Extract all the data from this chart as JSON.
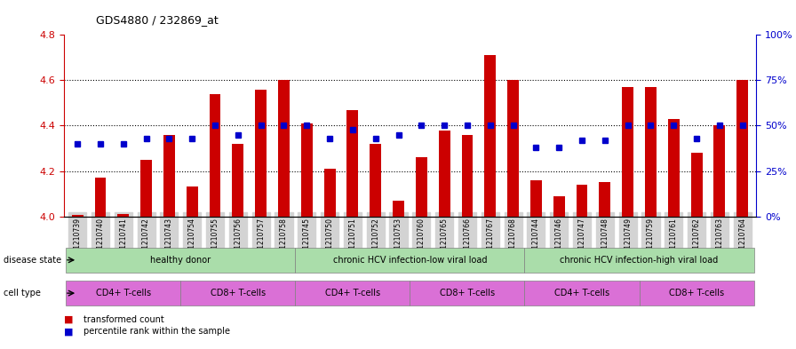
{
  "title": "GDS4880 / 232869_at",
  "samples": [
    "GSM1210739",
    "GSM1210740",
    "GSM1210741",
    "GSM1210742",
    "GSM1210743",
    "GSM1210754",
    "GSM1210755",
    "GSM1210756",
    "GSM1210757",
    "GSM1210758",
    "GSM1210745",
    "GSM1210750",
    "GSM1210751",
    "GSM1210752",
    "GSM1210753",
    "GSM1210760",
    "GSM1210765",
    "GSM1210766",
    "GSM1210767",
    "GSM1210768",
    "GSM1210744",
    "GSM1210746",
    "GSM1210747",
    "GSM1210748",
    "GSM1210749",
    "GSM1210759",
    "GSM1210761",
    "GSM1210762",
    "GSM1210763",
    "GSM1210764"
  ],
  "bar_values": [
    4.005,
    4.17,
    4.01,
    4.25,
    4.36,
    4.13,
    4.54,
    4.32,
    4.56,
    4.6,
    4.41,
    4.21,
    4.47,
    4.32,
    4.07,
    4.26,
    4.38,
    4.36,
    4.71,
    4.6,
    4.16,
    4.09,
    4.14,
    4.15,
    4.57,
    4.57,
    4.43,
    4.28,
    4.4,
    4.6
  ],
  "blue_values": [
    40,
    40,
    40,
    43,
    43,
    43,
    50,
    45,
    50,
    50,
    50,
    43,
    48,
    43,
    45,
    50,
    50,
    50,
    50,
    50,
    38,
    38,
    42,
    42,
    50,
    50,
    50,
    43,
    50,
    50
  ],
  "ylim_left": [
    4.0,
    4.8
  ],
  "ylim_right": [
    0,
    100
  ],
  "yticks_left": [
    4.0,
    4.2,
    4.4,
    4.6,
    4.8
  ],
  "yticks_right": [
    0,
    25,
    50,
    75,
    100
  ],
  "ytick_labels_right": [
    "0%",
    "25%",
    "50%",
    "75%",
    "100%"
  ],
  "bar_color": "#cc0000",
  "blue_color": "#0000cc",
  "grid_color": "#000000",
  "disease_state_groups": [
    {
      "label": "healthy donor",
      "start": 0,
      "end": 9,
      "color": "#90ee90"
    },
    {
      "label": "chronic HCV infection-low viral load",
      "start": 10,
      "end": 19,
      "color": "#90ee90"
    },
    {
      "label": "chronic HCV infection-high viral load",
      "start": 20,
      "end": 29,
      "color": "#90ee90"
    }
  ],
  "cell_type_groups": [
    {
      "label": "CD4+ T-cells",
      "start": 0,
      "end": 4,
      "color": "#da70d6"
    },
    {
      "label": "CD8+ T-cells",
      "start": 5,
      "end": 9,
      "color": "#da70d6"
    },
    {
      "label": "CD4+ T-cells",
      "start": 10,
      "end": 14,
      "color": "#da70d6"
    },
    {
      "label": "CD8+ T-cells",
      "start": 15,
      "end": 19,
      "color": "#da70d6"
    },
    {
      "label": "CD4+ T-cells",
      "start": 20,
      "end": 24,
      "color": "#da70d6"
    },
    {
      "label": "CD8+ T-cells",
      "start": 25,
      "end": 29,
      "color": "#da70d6"
    }
  ],
  "disease_state_label": "disease state",
  "cell_type_label": "cell type",
  "legend_bar": "transformed count",
  "legend_dot": "percentile rank within the sample",
  "bg_plot": "#ffffff",
  "bg_xticklabel": "#d3d3d3",
  "left_axis_color": "#cc0000",
  "right_axis_color": "#0000cc"
}
